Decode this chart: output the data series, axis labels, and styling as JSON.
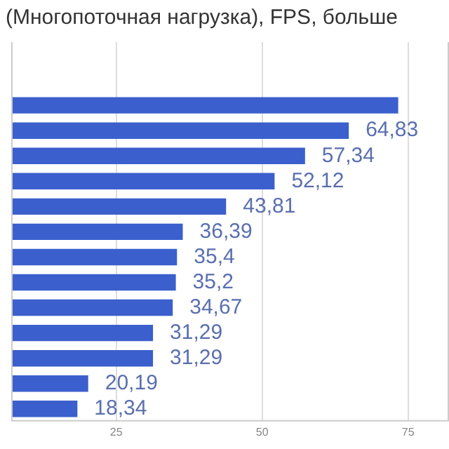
{
  "chart_data": {
    "type": "bar",
    "orientation": "horizontal",
    "title": "(Многопоточная нагрузка), FPS, больше",
    "categories": [
      null,
      null,
      null,
      null,
      null,
      null,
      null,
      null,
      null,
      null,
      null,
      null,
      null,
      null,
      null
    ],
    "values": [
      null,
      null,
      73.3,
      64.83,
      57.34,
      52.12,
      43.81,
      36.39,
      35.4,
      35.2,
      34.67,
      31.29,
      31.29,
      20.19,
      18.34
    ],
    "value_labels": [
      null,
      null,
      null,
      "64,83",
      "57,34",
      "52,12",
      "43,81",
      "36,39",
      "35,4",
      "35,2",
      "34,67",
      "31,29",
      "31,29",
      "20,19",
      "18,34"
    ],
    "color": "#3b5fcd",
    "xlim": [
      7,
      82
    ],
    "xticks": [
      25,
      50,
      75
    ],
    "grid": "x",
    "tick_labels": "x",
    "legend": false
  }
}
